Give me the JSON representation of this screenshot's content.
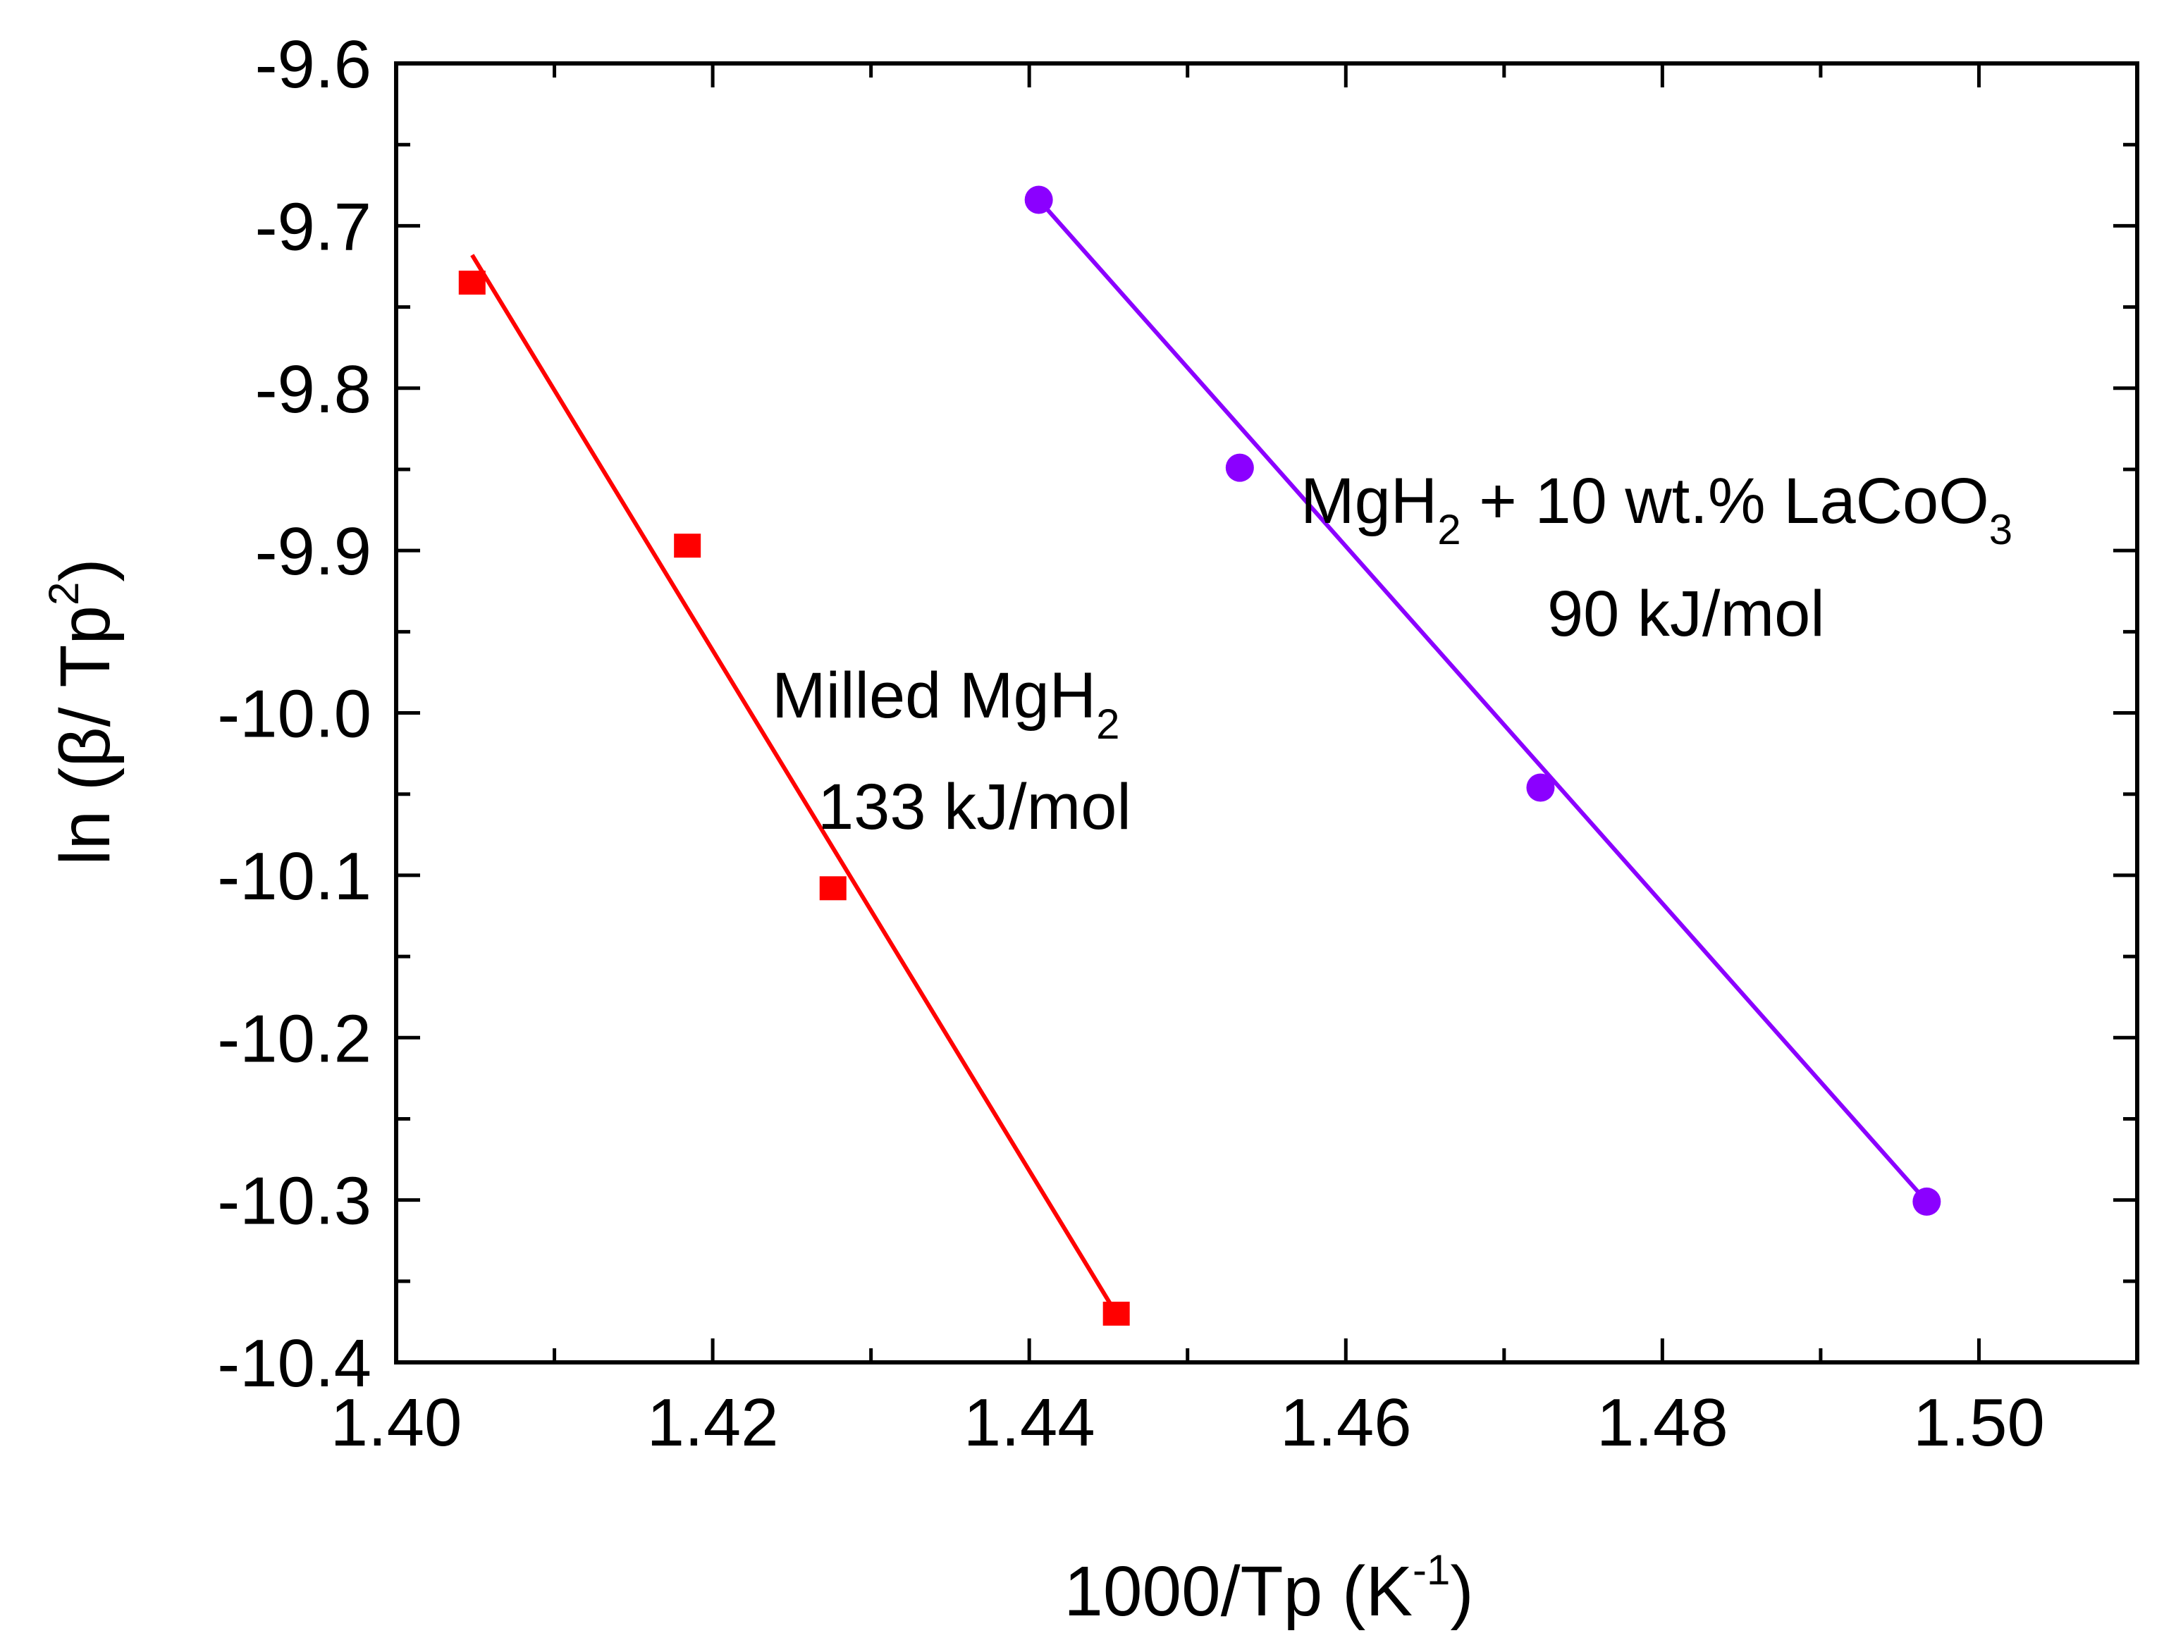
{
  "chart_data": {
    "type": "scatter",
    "title": "",
    "xlabel": {
      "main": "1000/Tp (K",
      "sup": "-1",
      "close": ")"
    },
    "ylabel": {
      "main": "ln (β/ Tp",
      "sup": "2",
      "close": ")"
    },
    "xlim": [
      1.4,
      1.51
    ],
    "ylim": [
      -10.4,
      -9.6
    ],
    "grid": false,
    "x_ticks": [
      "1.40",
      "1.42",
      "1.44",
      "1.46",
      "1.48",
      "1.50"
    ],
    "y_ticks": [
      "-9.6",
      "-9.7",
      "-9.8",
      "-9.9",
      "-10.0",
      "-10.1",
      "-10.2",
      "-10.3",
      "-10.4"
    ],
    "series": [
      {
        "name": "Milled MgH2",
        "color": "#ff0000",
        "marker": "square",
        "x": [
          1.4048,
          1.4184,
          1.4276,
          1.4455
        ],
        "y": [
          -9.735,
          -9.897,
          -10.108,
          -10.37
        ],
        "fit": {
          "x": [
            1.4048,
            1.4455
          ],
          "y": [
            -9.718,
            -10.37
          ]
        }
      },
      {
        "name": "MgH2 + 10 wt.% LaCoO3",
        "color": "#8b00ff",
        "marker": "circle",
        "x": [
          1.4406,
          1.4533,
          1.4723,
          1.4967
        ],
        "y": [
          -9.684,
          -9.849,
          -10.046,
          -10.301
        ],
        "fit": {
          "x": [
            1.4406,
            1.4967
          ],
          "y": [
            -9.684,
            -10.301
          ]
        }
      }
    ],
    "annotations": [
      {
        "id": "milled",
        "line1": {
          "main": "Milled MgH",
          "sub": "2"
        },
        "line2": "133 kJ/mol"
      },
      {
        "id": "doped",
        "line1": {
          "main": "MgH",
          "sub": "2",
          "rest": " + 10 wt.% LaCoO",
          "sub2": "3"
        },
        "line2": "90 kJ/mol"
      }
    ]
  }
}
